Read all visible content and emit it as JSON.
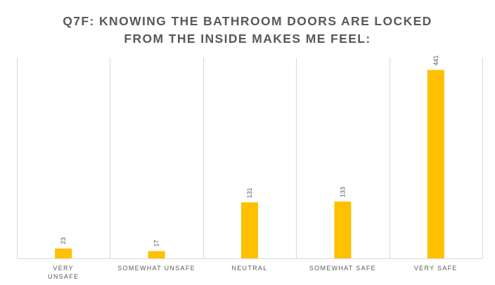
{
  "chart_data": {
    "type": "bar",
    "title": [
      "Q7F: KNOWING THE BATHROOM DOORS ARE LOCKED",
      "FROM THE INSIDE MAKES ME FEEL:"
    ],
    "categories": [
      [
        "VERY",
        "UNSAFE"
      ],
      [
        "SOMEWHAT UNSAFE"
      ],
      [
        "NEUTRAL"
      ],
      [
        "SOMEWHAT SAFE"
      ],
      [
        "VERY SAFE"
      ]
    ],
    "values": [
      23,
      17,
      131,
      133,
      441
    ],
    "data_labels": [
      "23",
      "17",
      "131",
      "133",
      "441"
    ],
    "xlabel": "",
    "ylabel": "",
    "ylim": [
      0,
      470
    ],
    "grid": "vertical category separators",
    "legend": "none",
    "colors": {
      "bar": "#FFC000",
      "text": "#595959",
      "gridline": "#D9D9D9"
    }
  }
}
